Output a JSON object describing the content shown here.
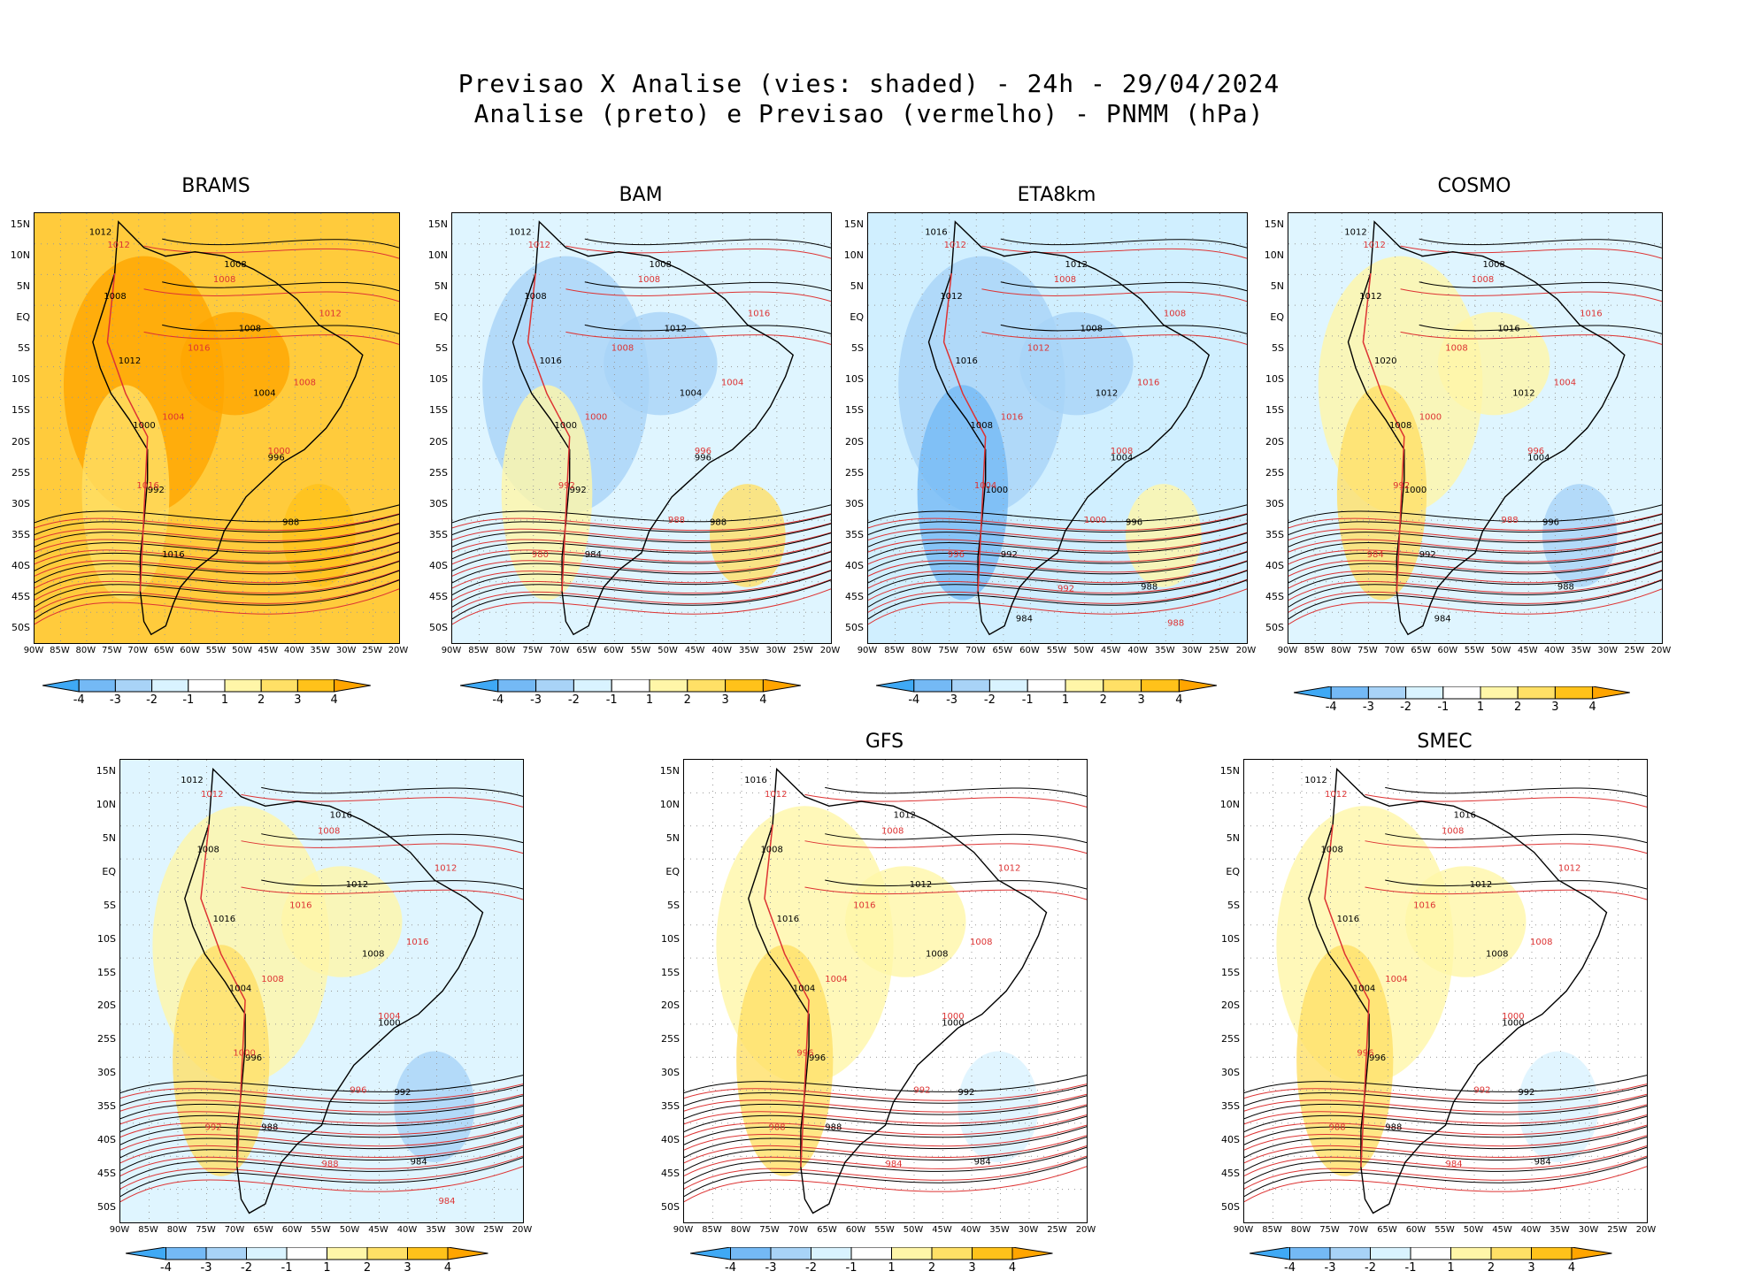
{
  "figure": {
    "title_line1": "Previsao X Analise (vies: shaded) - 24h - 29/04/2024",
    "title_line2": "Analise (preto) e Previsao (vermelho) - PNMM (hPa)"
  },
  "lat_labels": [
    "15N",
    "10N",
    "5N",
    "EQ",
    "5S",
    "10S",
    "15S",
    "20S",
    "25S",
    "30S",
    "35S",
    "40S",
    "45S",
    "50S"
  ],
  "lon_labels": [
    "90W",
    "85W",
    "80W",
    "75W",
    "70W",
    "65W",
    "60W",
    "55W",
    "50W",
    "45W",
    "40W",
    "35W",
    "30W",
    "25W",
    "20W"
  ],
  "colorbar": {
    "labels": [
      "-4",
      "-3",
      "-2",
      "-1",
      "1",
      "2",
      "3",
      "4"
    ],
    "colors": [
      "#3fa9f5",
      "#74b9f5",
      "#a8d3f7",
      "#d9f3ff",
      "#ffffff",
      "#fff6a8",
      "#ffe066",
      "#ffc21a",
      "#ffa500"
    ]
  },
  "panels": [
    {
      "name": "BRAMS",
      "shade": "warm",
      "labels": {
        "black": [
          "1012",
          "1008",
          "1008",
          "1008",
          "1012",
          "1004",
          "1000",
          "996",
          "992",
          "988",
          "1016"
        ],
        "red": [
          "1012",
          "1008",
          "1012",
          "1016",
          "1008",
          "1004",
          "1000",
          "1016"
        ]
      }
    },
    {
      "name": "BAM",
      "shade": "cool",
      "labels": {
        "black": [
          "1012",
          "1008",
          "1008",
          "1012",
          "1016",
          "1004",
          "1000",
          "996",
          "992",
          "988",
          "984"
        ],
        "red": [
          "1012",
          "1008",
          "1016",
          "1008",
          "1004",
          "1000",
          "996",
          "992",
          "988",
          "980"
        ]
      }
    },
    {
      "name": "ETA8km",
      "shade": "coolstrong",
      "labels": {
        "black": [
          "1016",
          "1012",
          "1012",
          "1008",
          "1016",
          "1012",
          "1008",
          "1004",
          "1000",
          "996",
          "992",
          "988",
          "984",
          "1004"
        ],
        "red": [
          "1012",
          "1008",
          "1008",
          "1012",
          "1016",
          "1016",
          "1008",
          "1004",
          "1000",
          "996",
          "992",
          "988",
          "984",
          "980"
        ]
      }
    },
    {
      "name": "COSMO",
      "shade": "mixed",
      "labels": {
        "black": [
          "1012",
          "1008",
          "1012",
          "1016",
          "1020",
          "1012",
          "1008",
          "1004",
          "1000",
          "996",
          "992",
          "988",
          "984"
        ],
        "red": [
          "1012",
          "1008",
          "1016",
          "1008",
          "1004",
          "1000",
          "996",
          "992",
          "988",
          "984"
        ]
      }
    },
    {
      "name": "",
      "shade": "mixed2",
      "labels": {
        "black": [
          "1012",
          "1016",
          "1008",
          "1012",
          "1016",
          "1008",
          "1004",
          "1000",
          "996",
          "992",
          "988",
          "984"
        ],
        "red": [
          "1012",
          "1008",
          "1012",
          "1016",
          "1016",
          "1008",
          "1004",
          "1000",
          "996",
          "992",
          "988",
          "984"
        ]
      }
    },
    {
      "name": "GFS",
      "shade": "light",
      "labels": {
        "black": [
          "1016",
          "1012",
          "1008",
          "1012",
          "1016",
          "1008",
          "1004",
          "1000",
          "996",
          "992",
          "988",
          "984"
        ],
        "red": [
          "1012",
          "1008",
          "1012",
          "1016",
          "1008",
          "1004",
          "1000",
          "996",
          "992",
          "988",
          "984"
        ]
      }
    },
    {
      "name": "SMEC",
      "shade": "light",
      "labels": {
        "black": [
          "1012",
          "1016",
          "1008",
          "1012",
          "1016",
          "1008",
          "1004",
          "1000",
          "996",
          "992",
          "988",
          "984"
        ],
        "red": [
          "1012",
          "1008",
          "1012",
          "1016",
          "1008",
          "1004",
          "1000",
          "996",
          "992",
          "988",
          "984"
        ]
      }
    }
  ]
}
